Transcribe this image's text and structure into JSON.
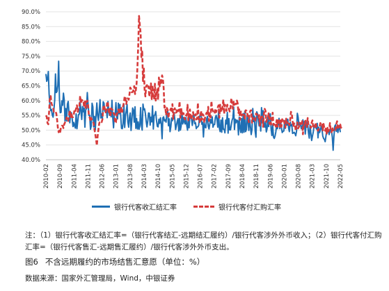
{
  "chart_data": {
    "type": "line",
    "title": "",
    "xlabel": "",
    "ylabel": "",
    "ylim": [
      40,
      90
    ],
    "y_ticks": [
      "40.0%",
      "45.0%",
      "50.0%",
      "55.0%",
      "60.0%",
      "65.0%",
      "70.0%",
      "75.0%",
      "80.0%",
      "85.0%",
      "90.0%"
    ],
    "x_ticks": [
      "2010-02",
      "2010-09",
      "2011-04",
      "2011-11",
      "2012-06",
      "2013-01",
      "2013-08",
      "2014-03",
      "2014-10",
      "2015-05",
      "2015-12",
      "2016-07",
      "2017-02",
      "2017-09",
      "2018-04",
      "2018-11",
      "2019-06",
      "2020-01",
      "2020-08",
      "2021-03",
      "2021-10",
      "2022-05"
    ],
    "grid": "horizontal",
    "legend_position": "bottom",
    "series": [
      {
        "name": "银行代客收汇结汇率",
        "color": "#1f6fb4",
        "style": "solid",
        "values": [
          69.0,
          66.5,
          67.3,
          69.8,
          62.3,
          58.5,
          56.6,
          57.0,
          55.1,
          54.4,
          56.9,
          60.0,
          69.0,
          62.7,
          63.1,
          65.2,
          73.3,
          60.6,
          55.9,
          56.0,
          59.9,
          58.4,
          62.5,
          60.3,
          53.1,
          57.3,
          53.1,
          58.8,
          59.7,
          55.8,
          52.5,
          55.7,
          55.9,
          53.8,
          51.2,
          52.6,
          51.5,
          50.7,
          55.5,
          50.5,
          52.9,
          55.3,
          55.4,
          59.6,
          56.6,
          53.6,
          58.0,
          56.2,
          57.5,
          51.0,
          56.9,
          57.3,
          62.7,
          58.8,
          55.0,
          55.0,
          50.3,
          51.4,
          59.1,
          57.9,
          51.1,
          54.6,
          50.0,
          55.0,
          59.2,
          54.9,
          53.3,
          56.5,
          60.3,
          54.1,
          55.5,
          54.0,
          59.6,
          59.1,
          56.4,
          57.1,
          57.0,
          54.2,
          59.7,
          56.2,
          55.0,
          56.8,
          54.5,
          60.1,
          54.3,
          50.8,
          55.5,
          55.3,
          59.3,
          54.3,
          53.8,
          59.1,
          55.5,
          58.7,
          54.9,
          50.6,
          50.5,
          52.2,
          58.8,
          50.9,
          54.9,
          56.5,
          58.7,
          52.7,
          51.0,
          54.3,
          55.8,
          49.9,
          53.4,
          57.5,
          56.8,
          52.7,
          57.9,
          50.6,
          53.9,
          50.4,
          52.8,
          50.3,
          51.4,
          57.6,
          51.8,
          50.0,
          58.8,
          56.9,
          57.2,
          55.6,
          53.0,
          51.1,
          53.1,
          55.8,
          55.7,
          51.7,
          54.4,
          52.8,
          58.2,
          50.4,
          54.9,
          55.2,
          56.3,
          53.3,
          51.3,
          51.1,
          53.7,
          52.3,
          54.2,
          52.2,
          47.1,
          54.2,
          54.5,
          53.1,
          53.5,
          52.7,
          56.1,
          56.4,
          51.5,
          53.8,
          49.5,
          51.1,
          54.1,
          53.2,
          54.7,
          56.0,
          53.6,
          50.2,
          51.5,
          52.9,
          53.9,
          49.7,
          54.0,
          50.0,
          51.4,
          56.0,
          52.1,
          54.3,
          52.7,
          52.1,
          54.3,
          51.6,
          50.0,
          54.3,
          50.8,
          55.3,
          54.7,
          53.9,
          51.6,
          53.6,
          55.2,
          52.2,
          52.5,
          50.5,
          51.1,
          51.1,
          51.6,
          54.2,
          55.5,
          55.5,
          52.0,
          52.6,
          47.7,
          52.4,
          51.0,
          50.8,
          53.8,
          54.6,
          51.3,
          50.4,
          52.2,
          53.6,
          52.4,
          54.5,
          51.0,
          51.9,
          51.9,
          54.3,
          55.0,
          53.7,
          51.0,
          56.4,
          50.7,
          49.5,
          53.4,
          49.3,
          54.2,
          50.3,
          50.3,
          49.1,
          53.4,
          52.1,
          56.0,
          49.0,
          53.9,
          50.1,
          50.1,
          51.8,
          53.4,
          54.1,
          57.8,
          50.2,
          53.7,
          52.5,
          53.4,
          53.1,
          48.4,
          54.4,
          50.6,
          49.2,
          53.9,
          49.1,
          55.6,
          49.3,
          56.4,
          49.5,
          50.2,
          55.3,
          53.0,
          49.9,
          53.7,
          51.3,
          48.5,
          50.1,
          57.3,
          52.9,
          54.7,
          49.6,
          47.6,
          56.2,
          55.5,
          53.2,
          51.4,
          53.7,
          49.7,
          57.6,
          52.5,
          56.6,
          51.6,
          51.0,
          53.0,
          49.4,
          50.5,
          54.8,
          51.2,
          54.7,
          55.5,
          50.5,
          48.2,
          51.8,
          47.7,
          47.2,
          48.0,
          49.4,
          52.0,
          50.5,
          52.1,
          54.0,
          50.5,
          52.8,
          51.0,
          49.2,
          49.6,
          49.7,
          53.2,
          50.6,
          53.4,
          51.7,
          53.7,
          50.7,
          49.5,
          52.7,
          51.5,
          51.9,
          48.9,
          49.0,
          49.3,
          48.9,
          48.1,
          49.6,
          55.7,
          54.4,
          51.8,
          52.0,
          51.9,
          50.5,
          50.9,
          53.5,
          51.7,
          52.9,
          48.7,
          51.8,
          52.6,
          52.1,
          49.1,
          47.3,
          51.7,
          49.1,
          46.5,
          48.0,
          49.3,
          51.4,
          51.7,
          51.5,
          50.4,
          52.3,
          47.4,
          51.0,
          49.2,
          50.1,
          51.4,
          50.3,
          48.0,
          47.2,
          46.9,
          46.1,
          48.0,
          49.9,
          49.3,
          49.8,
          48.5,
          49.6,
          50.4,
          49.9,
          47.5,
          43.2,
          47.9,
          51.3,
          51.8,
          49.6,
          50.9,
          49.2,
          50.7,
          51.6,
          49.3
        ]
      },
      {
        "name": "银行代客付汇购汇率",
        "color": "#d63b3b",
        "style": "dashed",
        "values": [
          55.0,
          54.5,
          52.4,
          52.0,
          56.3,
          61.2,
          61.5,
          59.0,
          58.3,
          57.7,
          56.2,
          56.4,
          56.2,
          55.7,
          53.6,
          50.8,
          49.3,
          50.1,
          49.4,
          51.2,
          51.5,
          51.5,
          50.7,
          52.0,
          52.6,
          52.8,
          54.3,
          53.2,
          53.1,
          54.8,
          56.8,
          54.4,
          55.9,
          54.4,
          54.4,
          55.3,
          57.0,
          56.5,
          57.4,
          58.4,
          56.2,
          57.7,
          58.0,
          61.6,
          59.1,
          60.2,
          60.1,
          60.2,
          57.7,
          60.0,
          57.5,
          59.5,
          60.0,
          58.2,
          55.0,
          54.3,
          53.0,
          54.1,
          53.4,
          52.9,
          52.4,
          50.2,
          48.7,
          46.9,
          44.8,
          48.0,
          50.2,
          52.3,
          53.0,
          52.8,
          52.7,
          53.6,
          57.4,
          58.5,
          57.2,
          56.0,
          56.9,
          59.7,
          59.1,
          55.6,
          57.2,
          54.5,
          57.4,
          56.9,
          56.8,
          55.6,
          55.6,
          52.4,
          52.6,
          55.4,
          56.0,
          57.0,
          56.0,
          57.0,
          55.7,
          57.5,
          56.2,
          58.2,
          59.3,
          61.5,
          60.7,
          58.8,
          60.7,
          60.7,
          60.3,
          62.1,
          64.4,
          63.9,
          62.8,
          62.9,
          63.5,
          64.9,
          62.2,
          63.5,
          65.9,
          71.2,
          78.5,
          88.6,
          85.6,
          82.8,
          74.7,
          77.0,
          66.6,
          71.3,
          63.8,
          61.4,
          64.9,
          65.2,
          64.2,
          64.8,
          61.3,
          63.3,
          65.8,
          60.5,
          65.1,
          61.5,
          60.4,
          65.7,
          60.0,
          62.6,
          63.8,
          60.3,
          67.8,
          64.8,
          66.9,
          66.0,
          68.5,
          67.4,
          64.2,
          57.6,
          57.9,
          55.1,
          57.5,
          56.9,
          54.1,
          56.2,
          56.6,
          57.3,
          56.1,
          58.8,
          53.8,
          56.8,
          57.4,
          55.9,
          56.0,
          57.3,
          56.4,
          56.8,
          59.7,
          54.2,
          57.4,
          55.3,
          55.8,
          55.7,
          54.1,
          53.6,
          55.0,
          54.9,
          58.6,
          53.3,
          56.4,
          57.0,
          53.6,
          54.1,
          55.1,
          56.1,
          53.5,
          54.3,
          55.4,
          53.6,
          53.9,
          59.2,
          53.3,
          52.7,
          53.2,
          56.6,
          53.5,
          55.4,
          55.0,
          52.5,
          54.2,
          55.2,
          55.9,
          55.0,
          57.9,
          53.1,
          55.6,
          54.3,
          59.8,
          57.1,
          56.5,
          55.8,
          55.6,
          57.2,
          56.1,
          57.3,
          57.7,
          58.4,
          54.2,
          58.6,
          56.6,
          56.2,
          58.0,
          60.3,
          55.5,
          58.6,
          58.1,
          56.5,
          58.6,
          57.6,
          57.1,
          56.3,
          57.5,
          60.8,
          59.1,
          57.2,
          59.6,
          58.6,
          58.9,
          58.8,
          60.0,
          59.1,
          55.8,
          57.0,
          53.5,
          56.3,
          54.9,
          55.3,
          55.1,
          55.6,
          53.5,
          56.7,
          56.6,
          55.7,
          54.4,
          52.7,
          55.5,
          56.6,
          56.7,
          52.5,
          54.2,
          53.7,
          53.5,
          53.0,
          55.6,
          55.5,
          54.4,
          54.2,
          55.1,
          51.6,
          55.1,
          54.2,
          54.6,
          51.1,
          55.5,
          57.2,
          56.5,
          52.8,
          53.9,
          54.1,
          55.7,
          52.1,
          54.2,
          51.9,
          53.1,
          55.9,
          51.7,
          52.5,
          52.1,
          51.2,
          53.4,
          51.2,
          53.9,
          53.1,
          51.1,
          53.3,
          51.1,
          53.7,
          52.9,
          53.2,
          52.3,
          50.9,
          53.9,
          52.3,
          52.6,
          52.9,
          51.7,
          53.5,
          56.2,
          55.7,
          53.1,
          51.1,
          52.3,
          52.1,
          49.8,
          51.8,
          52.6,
          50.6,
          51.1,
          52.5,
          52.0,
          52.5,
          53.3,
          48.6,
          51.7,
          51.3,
          53.5,
          52.0,
          51.1,
          54.1,
          51.7,
          51.7,
          51.5,
          50.8,
          52.5,
          53.3,
          50.8,
          50.7,
          50.9,
          52.6,
          50.9,
          50.3,
          49.8,
          50.5,
          51.2,
          52.4,
          51.7,
          51.9,
          49.9,
          52.1,
          50.5,
          49.8,
          50.8,
          48.8,
          50.8,
          49.5,
          50.2,
          52.4,
          49.8,
          49.3,
          51.0,
          49.9,
          50.5,
          50.3,
          50.1,
          52.1,
          53.0,
          50.2,
          51.4,
          51.1,
          51.9,
          50.4,
          51.0
        ]
      }
    ]
  },
  "note": "注：（1）银行代客收汇结汇率=（银行代客结汇-远期结汇履约）/银行代客涉外外币收入；（2）银行代客付汇购汇率=（银行代客售汇-远期售汇履约）/银行代客涉外外币支出。",
  "caption": {
    "figure_no": "图6",
    "text": "不含远期履约的市场结售汇意愿（单位：%）"
  },
  "source": "数据来源：国家外汇管理局，Wind，中银证券"
}
